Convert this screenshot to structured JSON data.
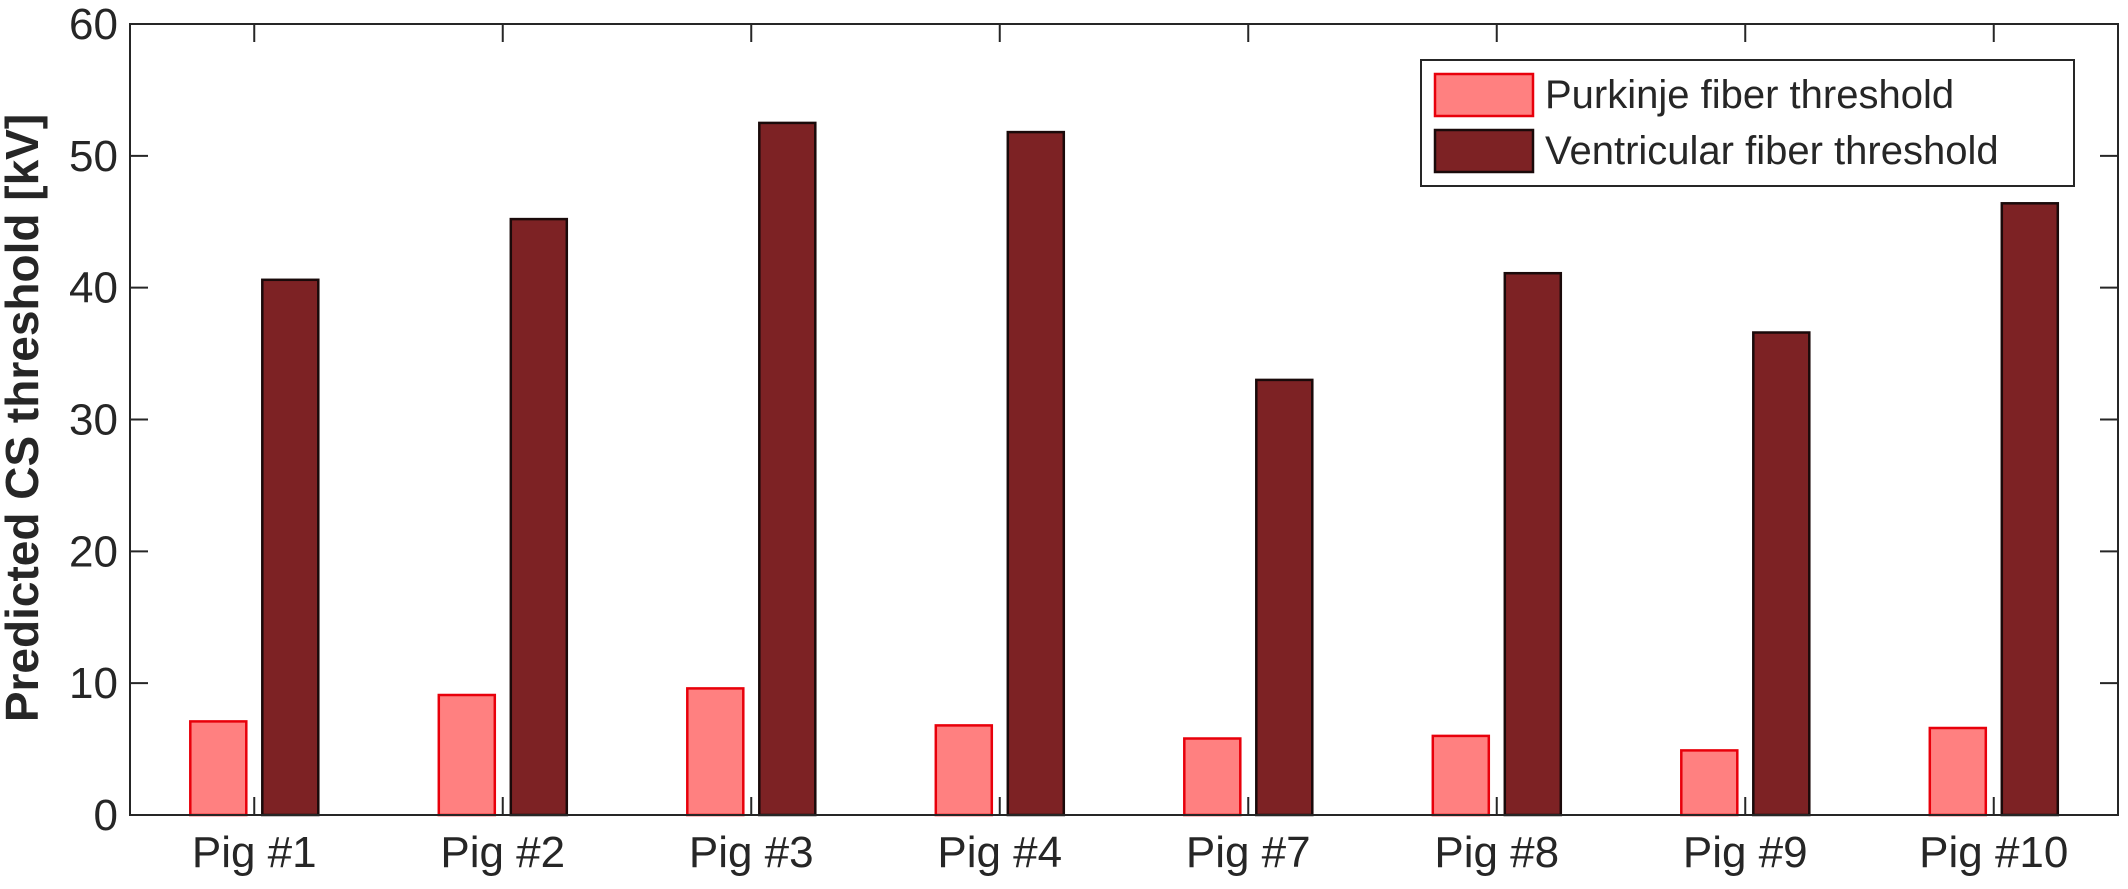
{
  "chart_data": {
    "type": "bar",
    "title": "",
    "xlabel": "",
    "ylabel": "Predicted CS threshold [kV]",
    "ylim": [
      0,
      60
    ],
    "yticks": [
      0,
      10,
      20,
      30,
      40,
      50,
      60
    ],
    "grid": false,
    "legend_position": "top-right",
    "categories": [
      "Pig #1",
      "Pig #2",
      "Pig #3",
      "Pig #4",
      "Pig #7",
      "Pig #8",
      "Pig #9",
      "Pig #10"
    ],
    "series": [
      {
        "name": "Purkinje fiber threshold",
        "values": [
          7.1,
          9.1,
          9.6,
          6.8,
          5.8,
          6.0,
          4.9,
          6.6
        ],
        "fill": "#ff8080",
        "stroke": "#e8000b"
      },
      {
        "name": "Ventricular fiber threshold",
        "values": [
          40.6,
          45.2,
          52.5,
          51.8,
          33.0,
          41.1,
          36.6,
          46.4
        ],
        "fill": "#7d2224",
        "stroke": "#1a0a0a"
      }
    ]
  }
}
